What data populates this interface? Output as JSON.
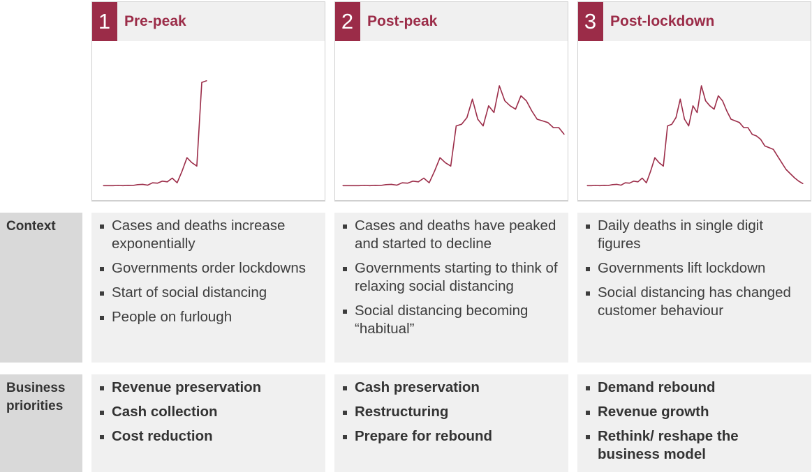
{
  "phases": [
    {
      "number": "1",
      "title": "Pre-peak",
      "context": [
        "Cases and deaths increase exponentially",
        "Governments order lockdowns",
        "Start of social distancing",
        "People on furlough"
      ],
      "priorities": [
        "Revenue preservation",
        "Cash collection",
        "Cost reduction"
      ]
    },
    {
      "number": "2",
      "title": "Post-peak",
      "context": [
        "Cases and deaths have peaked and started to decline",
        "Governments starting to think of relaxing social distancing",
        "Social distancing becoming “habitual”"
      ],
      "priorities": [
        "Cash preservation",
        "Restructuring",
        "Prepare for rebound"
      ]
    },
    {
      "number": "3",
      "title": "Post-lockdown",
      "context": [
        "Daily deaths in single digit figures",
        "Governments lift lockdown",
        "Social distancing has changed customer behaviour"
      ],
      "priorities": [
        "Demand rebound",
        "Revenue growth",
        "Rethink/ reshape the business model"
      ]
    }
  ],
  "row_labels": {
    "context": "Context",
    "priorities": "Business priorities"
  },
  "colors": {
    "accent": "#9b2c48",
    "panel": "#f0f0f0",
    "label_bg": "#d9d9d9"
  },
  "chart_data": [
    {
      "type": "line",
      "series": [
        {
          "values": [
            0.3,
            0.3,
            0.3,
            0.4,
            0.3,
            0.5,
            0.4,
            0.9,
            1.1,
            0.6,
            2.0,
            1.8,
            3.0,
            2.6,
            4.8,
            2.0,
            9.0,
            17.0,
            14.0,
            12.0,
            62.0,
            63.0
          ]
        }
      ],
      "ylim": [
        0,
        70
      ]
    },
    {
      "type": "line",
      "series": [
        {
          "values": [
            0.3,
            0.3,
            0.3,
            0.3,
            0.4,
            0.3,
            0.5,
            0.4,
            0.9,
            1.1,
            0.6,
            2.0,
            1.8,
            3.0,
            2.6,
            4.8,
            2.0,
            9.0,
            17.0,
            14.0,
            12.0,
            36.0,
            37.0,
            41.0,
            52.0,
            40.0,
            36.0,
            48.0,
            44.0,
            60.0,
            51.0,
            48.0,
            46.0,
            54.0,
            51.0,
            45.0,
            40.0,
            39.0,
            38.0,
            35.0,
            35.0,
            31.0
          ]
        }
      ],
      "ylim": [
        0,
        70
      ]
    },
    {
      "type": "line",
      "series": [
        {
          "values": [
            0.3,
            0.3,
            0.4,
            0.3,
            0.5,
            0.4,
            0.9,
            1.1,
            0.6,
            2.0,
            1.8,
            3.0,
            2.6,
            4.8,
            2.0,
            9.0,
            17.0,
            14.0,
            12.0,
            36.0,
            37.0,
            41.0,
            52.0,
            40.0,
            36.0,
            48.0,
            44.0,
            60.0,
            51.0,
            48.0,
            46.0,
            54.0,
            51.0,
            45.0,
            40.0,
            39.0,
            38.0,
            35.0,
            35.0,
            31.0,
            30.0,
            28.0,
            24.0,
            23.0,
            22.0,
            18.0,
            14.0,
            10.0,
            7.5,
            5.0,
            3.0,
            1.5
          ]
        }
      ],
      "ylim": [
        0,
        70
      ]
    }
  ]
}
